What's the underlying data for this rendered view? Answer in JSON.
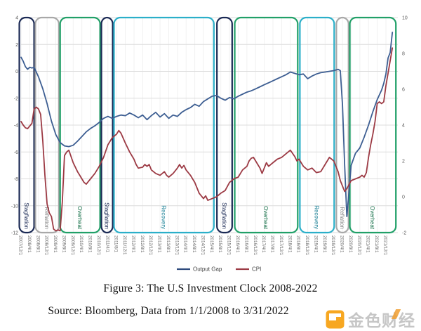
{
  "captions": {
    "figure": "Figure 3: The U.S Investment Clock 2008-2022",
    "source": "Source: Bloomberg, Data from 1/1/2008 to 3/31/2022"
  },
  "watermark": {
    "text": "金色财经",
    "icon": "jinse-orange-square-icon",
    "icon_color": "#F7A721",
    "text_color": "#c6c6c6"
  },
  "chart_data": {
    "type": "line",
    "title": "",
    "xlabel": "",
    "ylabel_left": "",
    "ylabel_right": "",
    "grid": {
      "h_color": "#dcdcdc",
      "v_color": "#f1f1f1",
      "horizontal": true,
      "vertical": true
    },
    "x_axis": {
      "months_per_tick": 4,
      "tick_labels": [
        "2007/12/1",
        "2008/4/1",
        "2008/8/1",
        "2008/12/1",
        "2009/4/1",
        "2009/8/1",
        "2009/12/1",
        "2010/4/1",
        "2010/8/1",
        "2010/12/1",
        "2011/4/1",
        "2011/8/1",
        "2011/12/1",
        "2012/4/1",
        "2012/8/1",
        "2012/12/1",
        "2013/4/1",
        "2013/8/1",
        "2013/12/1",
        "2014/4/1",
        "2014/8/1",
        "2014/12/1",
        "2015/4/1",
        "2015/8/1",
        "2015/12/1",
        "2016/4/1",
        "2016/8/1",
        "2016/12/1",
        "2017/4/1",
        "2017/8/1",
        "2017/12/1",
        "2018/4/1",
        "2018/8/1",
        "2018/12/1",
        "2019/4/1",
        "2019/8/1",
        "2019/12/1",
        "2020/4/1",
        "2020/8/1",
        "2020/12/1",
        "2021/4/1",
        "2021/8/1",
        "2021/12/1"
      ]
    },
    "left_y_axis": {
      "min": -12,
      "max": 4,
      "ticks": [
        4,
        2,
        0,
        -2,
        -4,
        -6,
        -8,
        -10,
        -12
      ]
    },
    "right_y_axis": {
      "min": -2,
      "max": 10,
      "ticks": [
        10,
        8,
        6,
        4,
        2,
        0,
        -2
      ]
    },
    "legend": {
      "position": "bottom-center",
      "items": [
        {
          "label": "Output Gap",
          "color": "#2e4a7d"
        },
        {
          "label": "CPI",
          "color": "#9c3a44"
        }
      ]
    },
    "phases": [
      {
        "label": "Stagflation",
        "start": -0.8,
        "end": 6,
        "color": "#1b2a55",
        "label_color": "#1b2a55"
      },
      {
        "label": "Reflation",
        "start": 6.6,
        "end": 17.4,
        "color": "#a8a8a8",
        "label_color": "#8a8a8a"
      },
      {
        "label": "Overheat",
        "start": 18,
        "end": 36.4,
        "color": "#21a068",
        "label_color": "#17714a"
      },
      {
        "label": "Stagflation",
        "start": 37,
        "end": 42.2,
        "color": "#1b2a55",
        "label_color": "#1b2a55"
      },
      {
        "label": "Recovery",
        "start": 42.8,
        "end": 88.8,
        "color": "#2bafc9",
        "label_color": "#177f95"
      },
      {
        "label": "Stagflation",
        "start": 90.2,
        "end": 97.2,
        "color": "#1b2a55",
        "label_color": "#1b2a55"
      },
      {
        "label": "Overheat",
        "start": 98.4,
        "end": 127.4,
        "color": "#21a068",
        "label_color": "#17714a"
      },
      {
        "label": "Recovery",
        "start": 128.4,
        "end": 144.2,
        "color": "#2bafc9",
        "label_color": "#177f95"
      },
      {
        "label": "Reflation",
        "start": 145.2,
        "end": 150.8,
        "color": "#a8a8a8",
        "label_color": "#8a8a8a"
      },
      {
        "label": "Overheat",
        "start": 151.4,
        "end": 172.6,
        "color": "#21a068",
        "label_color": "#17714a"
      }
    ],
    "series": [
      {
        "name": "Output Gap",
        "axis": "left",
        "color": "#3d5e92",
        "points": [
          [
            0,
            1.05
          ],
          [
            1,
            0.75
          ],
          [
            2,
            0.35
          ],
          [
            3,
            0.15
          ],
          [
            4,
            0.3
          ],
          [
            5,
            0.25
          ],
          [
            6,
            0.3
          ],
          [
            8,
            -0.4
          ],
          [
            10,
            -1.3
          ],
          [
            12,
            -2.4
          ],
          [
            14,
            -3.7
          ],
          [
            16,
            -4.7
          ],
          [
            18,
            -5.3
          ],
          [
            20,
            -5.55
          ],
          [
            22,
            -5.6
          ],
          [
            24,
            -5.5
          ],
          [
            26,
            -5.2
          ],
          [
            28,
            -4.85
          ],
          [
            30,
            -4.5
          ],
          [
            32,
            -4.25
          ],
          [
            34,
            -4.05
          ],
          [
            36,
            -3.8
          ],
          [
            38,
            -3.5
          ],
          [
            40,
            -3.35
          ],
          [
            42,
            -3.5
          ],
          [
            44,
            -3.35
          ],
          [
            46,
            -3.25
          ],
          [
            48,
            -3.3
          ],
          [
            50,
            -3.1
          ],
          [
            52,
            -3.25
          ],
          [
            54,
            -3.45
          ],
          [
            56,
            -3.25
          ],
          [
            58,
            -3.6
          ],
          [
            60,
            -3.3
          ],
          [
            62,
            -3.05
          ],
          [
            64,
            -3.4
          ],
          [
            66,
            -3.15
          ],
          [
            68,
            -3.5
          ],
          [
            70,
            -3.25
          ],
          [
            72,
            -3.35
          ],
          [
            74,
            -3.05
          ],
          [
            76,
            -2.85
          ],
          [
            78,
            -2.7
          ],
          [
            80,
            -2.45
          ],
          [
            82,
            -2.6
          ],
          [
            84,
            -2.25
          ],
          [
            86,
            -2.05
          ],
          [
            88,
            -1.85
          ],
          [
            90,
            -1.8
          ],
          [
            92,
            -2.0
          ],
          [
            94,
            -2.15
          ],
          [
            96,
            -1.95
          ],
          [
            98,
            -2.05
          ],
          [
            100,
            -1.85
          ],
          [
            102,
            -1.7
          ],
          [
            104,
            -1.55
          ],
          [
            106,
            -1.45
          ],
          [
            108,
            -1.3
          ],
          [
            110,
            -1.15
          ],
          [
            112,
            -1.0
          ],
          [
            114,
            -0.85
          ],
          [
            116,
            -0.7
          ],
          [
            118,
            -0.55
          ],
          [
            120,
            -0.4
          ],
          [
            122,
            -0.25
          ],
          [
            124,
            -0.05
          ],
          [
            126,
            -0.15
          ],
          [
            128,
            -0.25
          ],
          [
            130,
            -0.2
          ],
          [
            132,
            -0.55
          ],
          [
            134,
            -0.35
          ],
          [
            136,
            -0.2
          ],
          [
            138,
            -0.1
          ],
          [
            140,
            -0.05
          ],
          [
            142,
            0.0
          ],
          [
            144,
            0.05
          ],
          [
            146,
            0.15
          ],
          [
            147,
            0.05
          ],
          [
            148,
            -2.5
          ],
          [
            149,
            -7.0
          ],
          [
            150,
            -10.8
          ],
          [
            151,
            -9.0
          ],
          [
            152,
            -7.0
          ],
          [
            154,
            -6.1
          ],
          [
            156,
            -5.7
          ],
          [
            158,
            -4.9
          ],
          [
            160,
            -4.0
          ],
          [
            162,
            -3.0
          ],
          [
            164,
            -2.1
          ],
          [
            166,
            -1.4
          ],
          [
            167,
            -0.9
          ],
          [
            168,
            -0.2
          ],
          [
            169,
            1.0
          ],
          [
            170,
            1.4
          ],
          [
            171,
            2.9
          ]
        ]
      },
      {
        "name": "CPI",
        "axis": "right",
        "color": "#9c3a44",
        "points": [
          [
            0,
            4.2
          ],
          [
            1,
            4.0
          ],
          [
            2,
            3.85
          ],
          [
            3,
            3.8
          ],
          [
            4,
            3.95
          ],
          [
            5,
            4.1
          ],
          [
            6,
            4.9
          ],
          [
            7,
            5.0
          ],
          [
            8,
            4.9
          ],
          [
            9,
            4.6
          ],
          [
            10,
            3.1
          ],
          [
            11,
            1.2
          ],
          [
            12,
            -0.4
          ],
          [
            13,
            -0.9
          ],
          [
            14,
            -1.1
          ],
          [
            15,
            -1.8
          ],
          [
            16,
            -1.9
          ],
          [
            17,
            -1.85
          ],
          [
            18,
            -1.9
          ],
          [
            19,
            -0.3
          ],
          [
            20,
            2.3
          ],
          [
            21,
            2.5
          ],
          [
            22,
            2.6
          ],
          [
            24,
            1.9
          ],
          [
            26,
            1.4
          ],
          [
            27,
            1.2
          ],
          [
            28,
            1.0
          ],
          [
            29,
            0.8
          ],
          [
            30,
            0.7
          ],
          [
            31,
            0.85
          ],
          [
            32,
            1.0
          ],
          [
            34,
            1.3
          ],
          [
            36,
            1.7
          ],
          [
            38,
            2.2
          ],
          [
            40,
            2.9
          ],
          [
            42,
            3.3
          ],
          [
            44,
            3.5
          ],
          [
            45,
            3.7
          ],
          [
            46,
            3.55
          ],
          [
            48,
            3.0
          ],
          [
            50,
            2.5
          ],
          [
            52,
            2.1
          ],
          [
            53,
            1.8
          ],
          [
            54,
            1.6
          ],
          [
            56,
            1.65
          ],
          [
            57,
            1.8
          ],
          [
            58,
            1.7
          ],
          [
            59,
            1.8
          ],
          [
            60,
            1.5
          ],
          [
            62,
            1.3
          ],
          [
            64,
            1.2
          ],
          [
            66,
            1.4
          ],
          [
            67,
            1.2
          ],
          [
            68,
            1.1
          ],
          [
            70,
            1.3
          ],
          [
            72,
            1.6
          ],
          [
            73,
            1.8
          ],
          [
            74,
            1.6
          ],
          [
            75,
            1.75
          ],
          [
            76,
            1.5
          ],
          [
            78,
            1.2
          ],
          [
            80,
            0.8
          ],
          [
            82,
            0.2
          ],
          [
            84,
            -0.1
          ],
          [
            85,
            0.05
          ],
          [
            86,
            -0.2
          ],
          [
            88,
            -0.1
          ],
          [
            90,
            0.0
          ],
          [
            92,
            0.2
          ],
          [
            94,
            0.35
          ],
          [
            96,
            0.8
          ],
          [
            98,
            1.0
          ],
          [
            100,
            1.1
          ],
          [
            102,
            1.5
          ],
          [
            104,
            1.7
          ],
          [
            105,
            2.0
          ],
          [
            106,
            2.15
          ],
          [
            107,
            2.2
          ],
          [
            108,
            2.0
          ],
          [
            110,
            1.6
          ],
          [
            111,
            1.3
          ],
          [
            112,
            1.6
          ],
          [
            113,
            1.9
          ],
          [
            114,
            1.7
          ],
          [
            115,
            1.8
          ],
          [
            116,
            1.9
          ],
          [
            118,
            2.1
          ],
          [
            120,
            2.2
          ],
          [
            122,
            2.4
          ],
          [
            124,
            2.6
          ],
          [
            126,
            2.25
          ],
          [
            127,
            2.0
          ],
          [
            128,
            2.1
          ],
          [
            130,
            1.7
          ],
          [
            132,
            1.5
          ],
          [
            134,
            1.6
          ],
          [
            136,
            1.35
          ],
          [
            138,
            1.4
          ],
          [
            140,
            1.8
          ],
          [
            142,
            2.2
          ],
          [
            144,
            2.0
          ],
          [
            145,
            1.7
          ],
          [
            146,
            1.4
          ],
          [
            147,
            0.9
          ],
          [
            148,
            0.6
          ],
          [
            149,
            0.3
          ],
          [
            150,
            0.45
          ],
          [
            152,
            0.9
          ],
          [
            154,
            1.0
          ],
          [
            156,
            1.1
          ],
          [
            157,
            1.2
          ],
          [
            158,
            1.1
          ],
          [
            159,
            1.35
          ],
          [
            160,
            2.2
          ],
          [
            161,
            2.9
          ],
          [
            162,
            3.5
          ],
          [
            163,
            4.2
          ],
          [
            164,
            5.2
          ],
          [
            165,
            5.3
          ],
          [
            166,
            5.2
          ],
          [
            167,
            5.3
          ],
          [
            168,
            6.2
          ],
          [
            169,
            6.9
          ],
          [
            170,
            7.6
          ],
          [
            171,
            8.3
          ]
        ]
      }
    ]
  }
}
